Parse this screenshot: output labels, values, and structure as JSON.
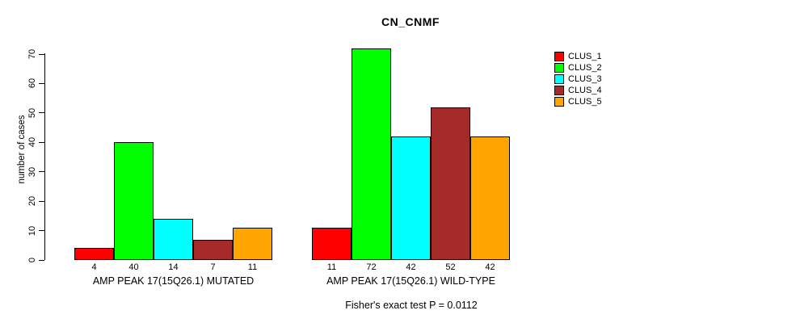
{
  "chart_data": {
    "type": "bar",
    "title": "CN_CNMF",
    "ylabel": "number of cases",
    "ylim": [
      0,
      70
    ],
    "yticks": [
      0,
      10,
      20,
      30,
      40,
      50,
      60,
      70
    ],
    "grid": false,
    "legend_position": "right",
    "bar_value_labels": true,
    "categories": [
      "AMP PEAK 17(15Q26.1) MUTATED",
      "AMP PEAK 17(15Q26.1) WILD-TYPE"
    ],
    "series": [
      {
        "name": "CLUS_1",
        "color": "#FF0000",
        "values": [
          4,
          11
        ]
      },
      {
        "name": "CLUS_2",
        "color": "#00FF00",
        "values": [
          40,
          72
        ]
      },
      {
        "name": "CLUS_3",
        "color": "#00FFFF",
        "values": [
          14,
          42
        ]
      },
      {
        "name": "CLUS_4",
        "color": "#A52A2A",
        "values": [
          7,
          52
        ]
      },
      {
        "name": "CLUS_5",
        "color": "#FFA500",
        "values": [
          11,
          42
        ]
      }
    ],
    "annotation": "Fisher's exact test P = 0.0112"
  },
  "colors": {
    "background": "#FFFFFF",
    "axis": "#000000",
    "bar_border": "#000000",
    "text": "#000000"
  }
}
